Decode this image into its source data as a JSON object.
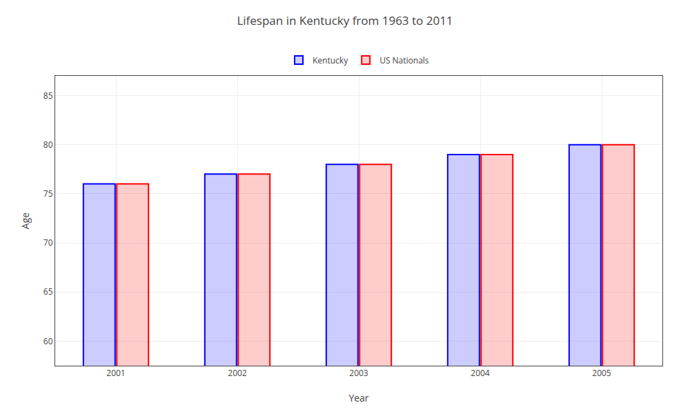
{
  "chart_data": {
    "type": "bar",
    "title": "Lifespan in Kentucky from 1963 to 2011",
    "x_label": "Year",
    "y_label": "Age",
    "categories": [
      "2001",
      "2002",
      "2003",
      "2004",
      "2005"
    ],
    "series": [
      {
        "name": "Kentucky",
        "color": "#0000ff",
        "values": [
          76,
          77,
          78,
          79,
          80
        ]
      },
      {
        "name": "US Nationals",
        "color": "#ff0000",
        "values": [
          76,
          77,
          78,
          79,
          80
        ]
      }
    ],
    "ylim": [
      57.5,
      87
    ],
    "yticks": [
      60,
      65,
      70,
      75,
      80,
      85
    ],
    "grid": true,
    "legend": "top"
  }
}
